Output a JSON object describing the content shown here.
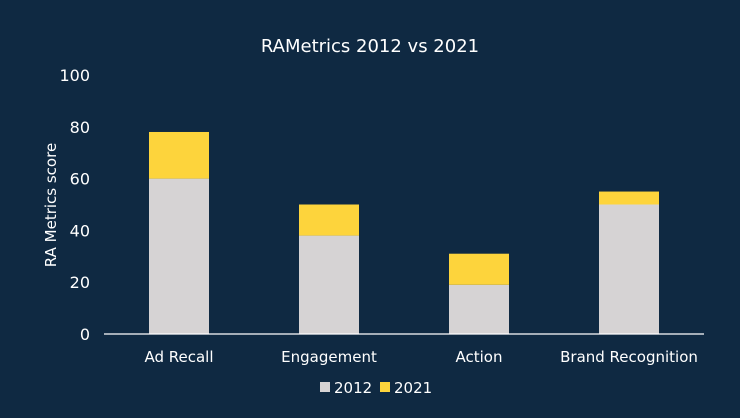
{
  "chart_data": {
    "type": "bar",
    "stacked": true,
    "title": "RAMetrics 2012 vs 2021",
    "xlabel": "",
    "ylabel": "RA Metrics score",
    "ylim": [
      0,
      100
    ],
    "yticks": [
      0,
      20,
      40,
      60,
      80,
      100
    ],
    "grid": false,
    "legend_position": "bottom",
    "categories": [
      "Ad Recall",
      "Engagement",
      "Action",
      "Brand Recognition"
    ],
    "series": [
      {
        "name": "2012",
        "color": "#d6d3d4",
        "values": [
          60,
          38,
          19,
          50
        ]
      },
      {
        "name": "2021",
        "color": "#fdd43c",
        "values": [
          18,
          12,
          12,
          5
        ]
      }
    ]
  }
}
